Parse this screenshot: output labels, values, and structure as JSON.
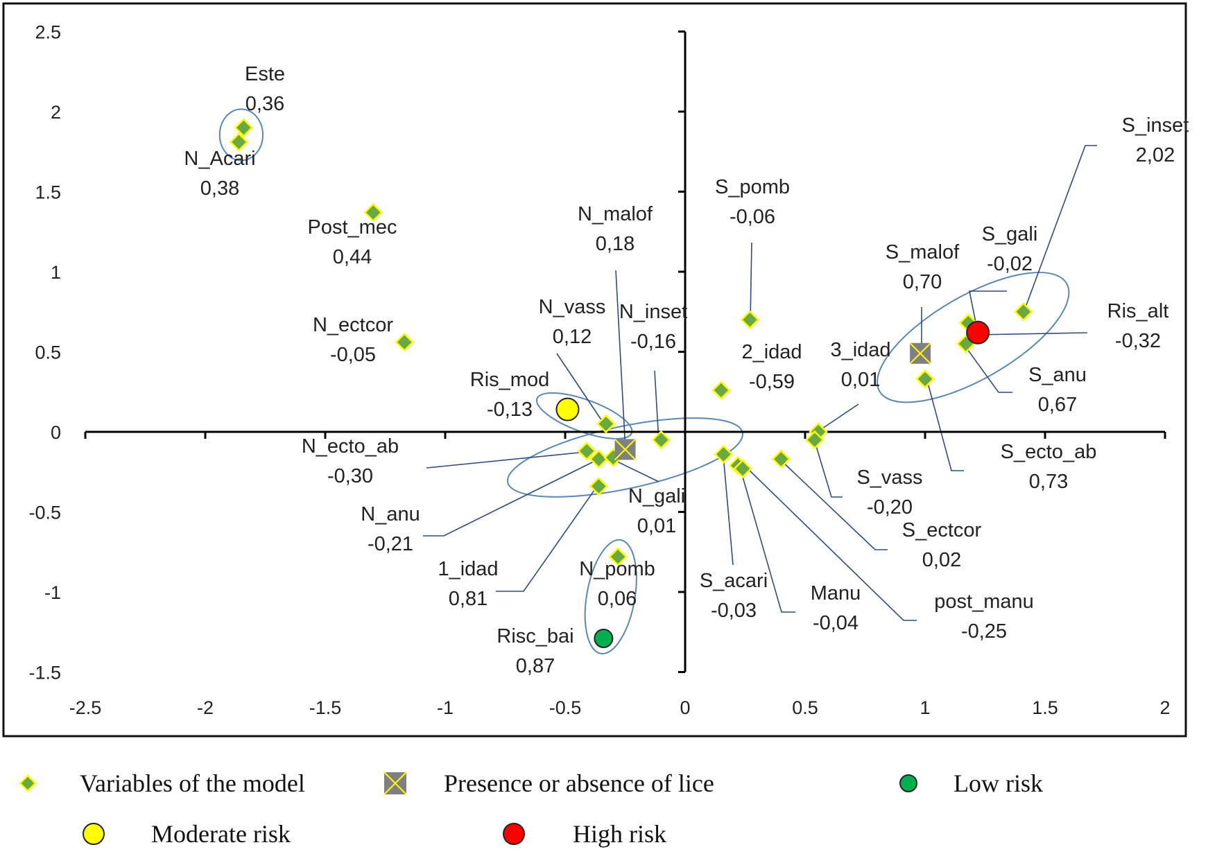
{
  "chart_data": {
    "type": "scatter",
    "title": "",
    "xlabel": "",
    "ylabel": "",
    "xlim": [
      -2.5,
      2
    ],
    "ylim": [
      -1.5,
      2.5
    ],
    "x_ticks": [
      "-2.5",
      "-2",
      "-1.5",
      "-1",
      "-0.5",
      "0",
      "0.5",
      "1",
      "1.5",
      "2"
    ],
    "x_tick_values": [
      -2.5,
      -2,
      -1.5,
      -1,
      -0.5,
      0,
      0.5,
      1,
      1.5,
      2
    ],
    "y_ticks": [
      "2.5",
      "2",
      "1.5",
      "1",
      "0.5",
      "0",
      "-0.5",
      "-1",
      "-1.5"
    ],
    "y_tick_values": [
      2.5,
      2,
      1.5,
      1,
      0.5,
      0,
      -0.5,
      -1,
      -1.5
    ],
    "grid": false,
    "legend_position": "bottom",
    "colors": {
      "variable_fill": "#6aa843",
      "variable_edge": "#ffff00",
      "lice_fill": "#808080",
      "lice_cross": "#ffff00",
      "moderate": "#ffff00",
      "high": "#ff0000",
      "low": "#00b050",
      "leader": "#2f4b7c",
      "ellipse": "#5b87b5"
    },
    "series": [
      {
        "name": "Variables of the model",
        "marker": "diamond",
        "points": [
          {
            "label": "Este",
            "value": "0,36",
            "x": -1.84,
            "y": 1.9
          },
          {
            "label": "N_Acari",
            "value": "0,38",
            "x": -1.86,
            "y": 1.81
          },
          {
            "label": "Post_mec",
            "value": "0,44",
            "x": -1.3,
            "y": 1.37
          },
          {
            "label": "N_ectcor",
            "value": "-0,05",
            "x": -1.17,
            "y": 0.56
          },
          {
            "label": "N_vass",
            "value": "0,12",
            "x": -0.33,
            "y": 0.05
          },
          {
            "label": "N_inset",
            "value": "-0,16",
            "x": -0.1,
            "y": -0.05
          },
          {
            "label": "N_ecto_ab",
            "value": "-0,30",
            "x": -0.41,
            "y": -0.12
          },
          {
            "label": "N_anu",
            "value": "-0,21",
            "x": -0.36,
            "y": -0.17
          },
          {
            "label": "N_gali",
            "value": "0,01",
            "x": -0.3,
            "y": -0.16
          },
          {
            "label": "1_idad",
            "value": "0,81",
            "x": -0.36,
            "y": -0.34
          },
          {
            "label": "N_pomb",
            "value": "0,06",
            "x": -0.28,
            "y": -0.78
          },
          {
            "label": "S_pomb",
            "value": "-0,06",
            "x": 0.27,
            "y": 0.7
          },
          {
            "label": "2_idad",
            "value": "-0,59",
            "x": 0.15,
            "y": 0.26
          },
          {
            "label": "3_idad",
            "value": "0,01",
            "x": 0.555,
            "y": 0.0
          },
          {
            "label": "S_vass",
            "value": "-0,20",
            "x": 0.54,
            "y": -0.05
          },
          {
            "label": "S_acari",
            "value": "-0,03",
            "x": 0.16,
            "y": -0.14
          },
          {
            "label": "Manu",
            "value": "-0,04",
            "x": 0.22,
            "y": -0.21
          },
          {
            "label": "post_manu",
            "value": "-0,25",
            "x": 0.24,
            "y": -0.23
          },
          {
            "label": "S_ectcor",
            "value": "0,02",
            "x": 0.4,
            "y": -0.17
          },
          {
            "label": "S_gali",
            "value": "-0,02",
            "x": 1.18,
            "y": 0.68
          },
          {
            "label": "S_anu",
            "value": "0,67",
            "x": 1.17,
            "y": 0.55
          },
          {
            "label": "S_inset",
            "value": "2,02",
            "x": 1.41,
            "y": 0.75
          },
          {
            "label": "S_ecto_ab",
            "value": "0,73",
            "x": 1.0,
            "y": 0.33
          }
        ]
      },
      {
        "name": "Presence or absence of lice",
        "marker": "square-x",
        "points": [
          {
            "label": "N_malof",
            "value": "0,18",
            "x": -0.25,
            "y": -0.11
          },
          {
            "label": "S_malof",
            "value": "0,70",
            "x": 0.98,
            "y": 0.49
          }
        ]
      },
      {
        "name": "Low risk",
        "marker": "circle",
        "points": [
          {
            "label": "Risc_bai",
            "value": "0,87",
            "x": -0.34,
            "y": -1.29
          }
        ]
      },
      {
        "name": "Moderate risk",
        "marker": "circle",
        "points": [
          {
            "label": "Ris_mod",
            "value": "-0,13",
            "x": -0.49,
            "y": 0.14
          }
        ]
      },
      {
        "name": "High risk",
        "marker": "circle",
        "points": [
          {
            "label": "Ris_alt",
            "value": "-0,32",
            "x": 1.22,
            "y": 0.62
          }
        ]
      }
    ],
    "legend": [
      {
        "label": "Variables of the model",
        "marker": "diamond"
      },
      {
        "label": "Presence or absence of lice",
        "marker": "square-x"
      },
      {
        "label": "Low risk",
        "marker": "circle-green"
      },
      {
        "label": "Moderate risk",
        "marker": "circle-yellow"
      },
      {
        "label": "High risk",
        "marker": "circle-red"
      }
    ]
  }
}
